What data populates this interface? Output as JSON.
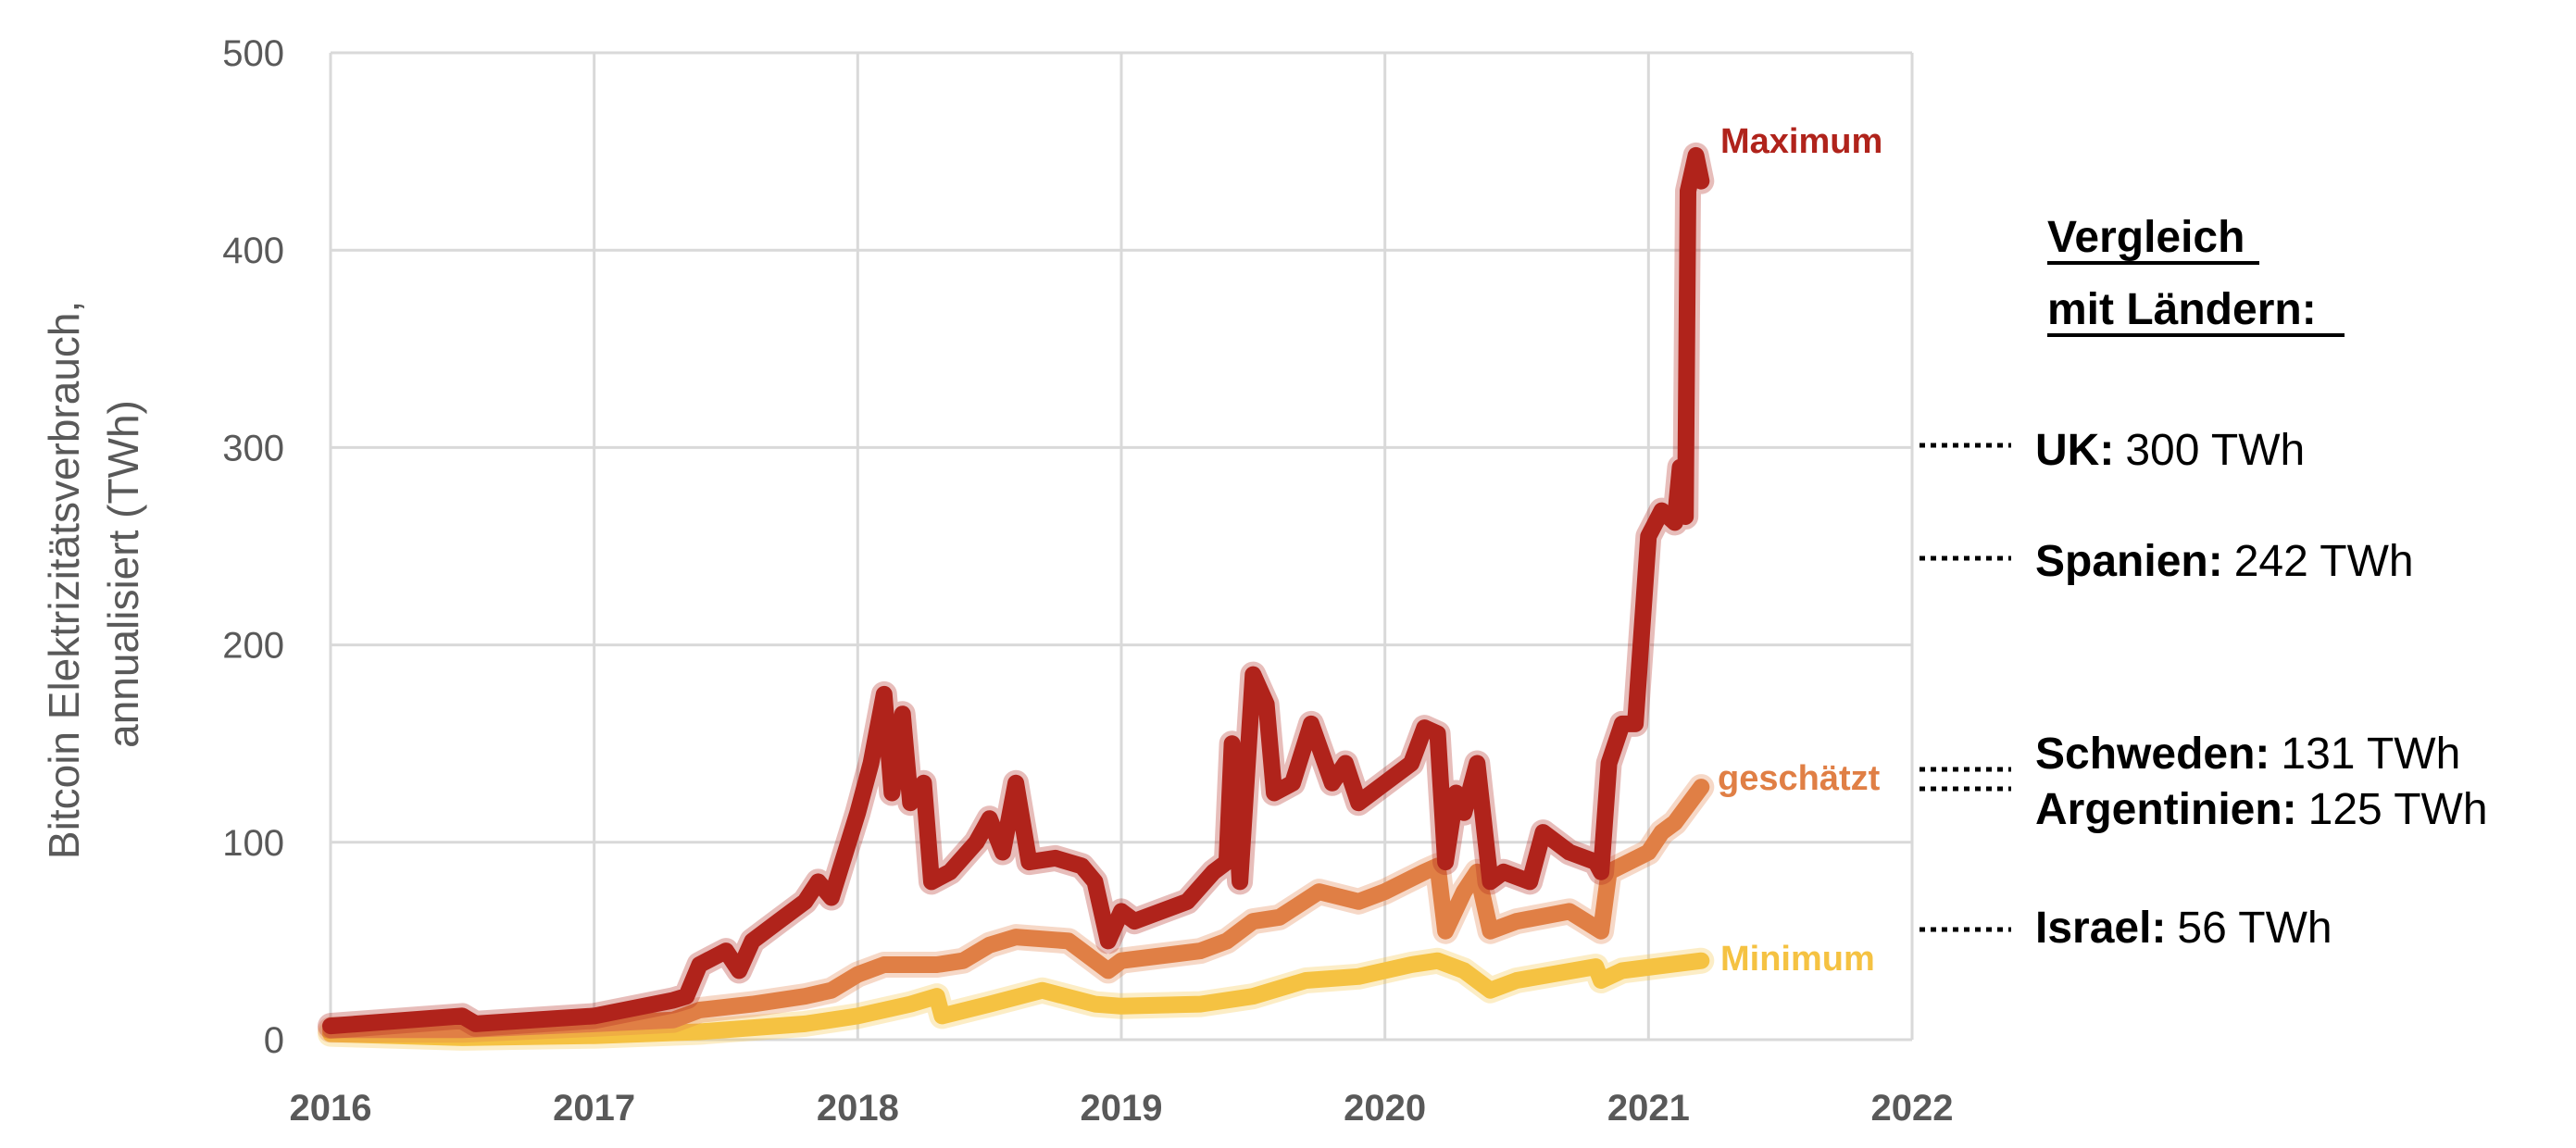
{
  "chart_data": {
    "type": "line",
    "title": "",
    "xlabel": "",
    "ylabel_line1": "Bitcoin Elektrizitätsverbrauch,",
    "ylabel_line2": "annualisiert (TWh)",
    "xlim": [
      2016,
      2022
    ],
    "ylim": [
      0,
      500
    ],
    "x_ticks": [
      "2016",
      "2017",
      "2018",
      "2019",
      "2020",
      "2021",
      "2022"
    ],
    "y_ticks": [
      "0",
      "100",
      "200",
      "300",
      "400",
      "500"
    ],
    "grid": true,
    "series": [
      {
        "name": "Maximum",
        "color": "#b0231b",
        "x": [
          2016.0,
          2016.5,
          2016.55,
          2017.0,
          2017.3,
          2017.35,
          2017.4,
          2017.5,
          2017.55,
          2017.6,
          2017.7,
          2017.8,
          2017.85,
          2017.9,
          2018.0,
          2018.05,
          2018.1,
          2018.13,
          2018.17,
          2018.2,
          2018.25,
          2018.28,
          2018.35,
          2018.45,
          2018.5,
          2018.55,
          2018.6,
          2018.65,
          2018.75,
          2018.85,
          2018.9,
          2018.95,
          2019.0,
          2019.05,
          2019.15,
          2019.25,
          2019.35,
          2019.4,
          2019.42,
          2019.45,
          2019.5,
          2019.55,
          2019.58,
          2019.65,
          2019.72,
          2019.8,
          2019.85,
          2019.9,
          2020.0,
          2020.1,
          2020.15,
          2020.2,
          2020.23,
          2020.27,
          2020.3,
          2020.35,
          2020.4,
          2020.45,
          2020.55,
          2020.6,
          2020.7,
          2020.8,
          2020.82,
          2020.85,
          2020.9,
          2020.95,
          2021.0,
          2021.05,
          2021.1,
          2021.12,
          2021.14,
          2021.15,
          2021.18,
          2021.2
        ],
        "y": [
          7,
          12,
          8,
          12,
          20,
          22,
          38,
          45,
          35,
          50,
          60,
          70,
          80,
          72,
          115,
          140,
          175,
          125,
          165,
          120,
          130,
          80,
          85,
          100,
          112,
          95,
          130,
          90,
          92,
          88,
          80,
          50,
          65,
          60,
          65,
          70,
          85,
          90,
          150,
          80,
          185,
          170,
          125,
          130,
          160,
          130,
          140,
          120,
          130,
          140,
          158,
          155,
          90,
          125,
          115,
          140,
          80,
          85,
          80,
          105,
          95,
          90,
          85,
          140,
          160,
          160,
          255,
          268,
          262,
          290,
          265,
          430,
          448,
          435
        ]
      },
      {
        "name": "geschätzt",
        "color": "#e07f45",
        "x": [
          2016.0,
          2016.5,
          2017.0,
          2017.3,
          2017.4,
          2017.6,
          2017.8,
          2017.9,
          2018.0,
          2018.1,
          2018.2,
          2018.3,
          2018.4,
          2018.5,
          2018.6,
          2018.8,
          2018.95,
          2019.0,
          2019.3,
          2019.4,
          2019.5,
          2019.6,
          2019.75,
          2019.9,
          2020.0,
          2020.15,
          2020.2,
          2020.23,
          2020.3,
          2020.35,
          2020.4,
          2020.5,
          2020.7,
          2020.82,
          2020.85,
          2021.0,
          2021.05,
          2021.1,
          2021.2
        ],
        "y": [
          5,
          5,
          8,
          10,
          15,
          18,
          22,
          25,
          33,
          38,
          38,
          38,
          40,
          48,
          52,
          50,
          35,
          40,
          45,
          50,
          60,
          62,
          75,
          70,
          75,
          85,
          88,
          55,
          75,
          85,
          55,
          60,
          65,
          55,
          85,
          95,
          105,
          110,
          128
        ]
      },
      {
        "name": "Minimum",
        "color": "#f5c242",
        "x": [
          2016.0,
          2016.5,
          2017.0,
          2017.4,
          2017.8,
          2018.0,
          2018.2,
          2018.3,
          2018.32,
          2018.5,
          2018.7,
          2018.9,
          2019.0,
          2019.3,
          2019.5,
          2019.7,
          2019.9,
          2020.1,
          2020.2,
          2020.3,
          2020.4,
          2020.5,
          2020.8,
          2020.82,
          2020.9,
          2021.2
        ],
        "y": [
          3,
          1,
          2,
          4,
          8,
          12,
          18,
          22,
          12,
          18,
          25,
          18,
          17,
          18,
          22,
          30,
          32,
          38,
          40,
          35,
          25,
          30,
          37,
          30,
          35,
          40
        ]
      }
    ]
  },
  "comparison": {
    "heading_line1": "Vergleich",
    "heading_line2": "mit Ländern:",
    "items": [
      {
        "country": "UK:",
        "value_text": "300 TWh",
        "value": 300
      },
      {
        "country": "Spanien:",
        "value_text": "242 TWh",
        "value": 242
      },
      {
        "country": "Schweden:",
        "value_text": "131 TWh",
        "value": 131
      },
      {
        "country": "Argentinien:",
        "value_text": "125 TWh",
        "value": 125
      },
      {
        "country": "Israel:",
        "value_text": "56 TWh",
        "value": 56
      }
    ]
  }
}
